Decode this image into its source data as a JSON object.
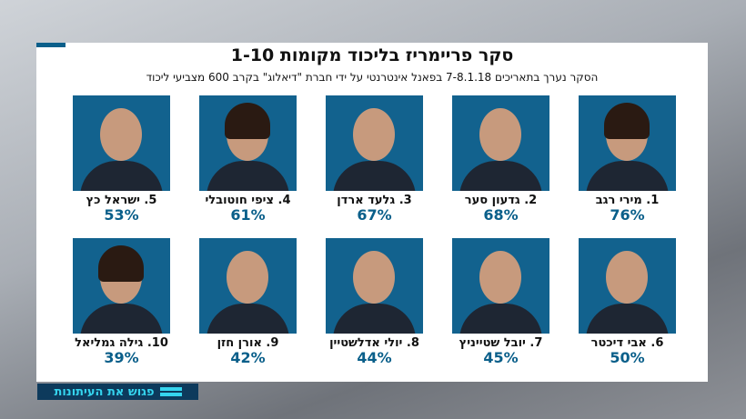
{
  "colors": {
    "accent": "#0a5f8a",
    "photo_bg": "#12628e",
    "ticker_bg": "#0d3a5c",
    "ticker_text": "#35d4ee"
  },
  "title": "סקר פריימריז בליכוד מקומות 1-10",
  "subtitle": "הסקר נערך בתאריכים 7-8.1.18 בפאנל אינטרנטי על ידי חברת \"דיאלוג\" בקרב 600 מצביעי ליכוד",
  "candidates": [
    {
      "name": "1. מירי רגב",
      "percent": "76%"
    },
    {
      "name": "2. גדעון סער",
      "percent": "68%"
    },
    {
      "name": "3. גלעד ארדן",
      "percent": "67%"
    },
    {
      "name": "4. ציפי חוטובלי",
      "percent": "61%"
    },
    {
      "name": "5. ישראל כץ",
      "percent": "53%"
    },
    {
      "name": "6. אבי דיכטר",
      "percent": "50%"
    },
    {
      "name": "7. יובל שטייניץ",
      "percent": "45%"
    },
    {
      "name": "8. יולי אדלשטיין",
      "percent": "44%"
    },
    {
      "name": "9. אורן חזן",
      "percent": "42%"
    },
    {
      "name": "10. גילה גמליאל",
      "percent": "39%"
    }
  ],
  "ticker": {
    "label": "פגוש את העיתונות",
    "icon": "double-bar-icon"
  }
}
